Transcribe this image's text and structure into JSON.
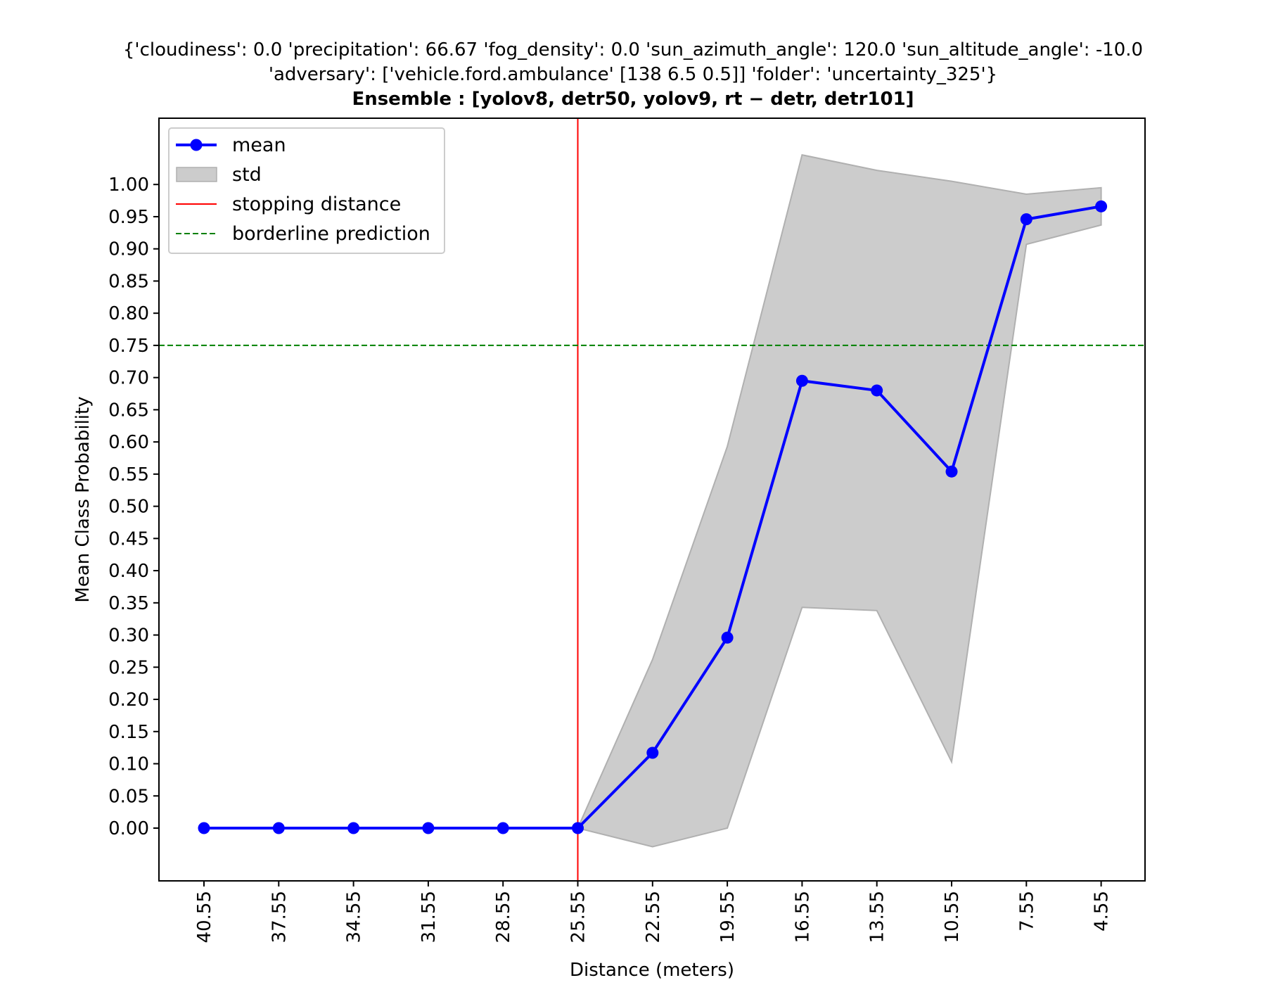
{
  "chart_data": {
    "type": "line",
    "title_lines": [
      "{'cloudiness': 0.0 'precipitation': 66.67 'fog_density': 0.0 'sun_azimuth_angle': 120.0 'sun_altitude_angle': -10.0",
      "'adversary': ['vehicle.ford.ambulance' [138 6.5 0.5]] 'folder': 'uncertainty_325'}",
      "Ensemble : [yolov8, detr50, yolov9, rt − detr, detr101]"
    ],
    "xlabel": "Distance (meters)",
    "ylabel": "Mean Class Probability",
    "categories": [
      "40.55",
      "37.55",
      "34.55",
      "31.55",
      "28.55",
      "25.55",
      "22.55",
      "19.55",
      "16.55",
      "13.55",
      "10.55",
      "7.55",
      "4.55"
    ],
    "series": [
      {
        "name": "mean",
        "color": "#0000ff",
        "values": [
          0,
          0,
          0,
          0,
          0,
          0,
          0.117,
          0.296,
          0.695,
          0.68,
          0.554,
          0.946,
          0.966
        ]
      }
    ],
    "std_band": {
      "name": "std",
      "color": "#cccccc",
      "upper": [
        0,
        0,
        0,
        0,
        0,
        0,
        0.262,
        0.593,
        1.046,
        1.022,
        1.005,
        0.985,
        0.995
      ],
      "lower": [
        0,
        0,
        0,
        0,
        0,
        0,
        -0.029,
        0.0,
        0.343,
        0.338,
        0.103,
        0.907,
        0.937
      ]
    },
    "stopping_distance": {
      "name": "stopping distance",
      "x_category": "25.55",
      "color": "#ff0000"
    },
    "borderline_prediction": {
      "name": "borderline prediction",
      "y": 0.75,
      "color": "#008000"
    },
    "ylim": [
      -0.082,
      1.103
    ],
    "yticks": [
      "0.00",
      "0.05",
      "0.10",
      "0.15",
      "0.20",
      "0.25",
      "0.30",
      "0.35",
      "0.40",
      "0.45",
      "0.50",
      "0.55",
      "0.60",
      "0.65",
      "0.70",
      "0.75",
      "0.80",
      "0.85",
      "0.90",
      "0.95",
      "1.00"
    ],
    "legend_position": "upper left",
    "grid": false
  }
}
